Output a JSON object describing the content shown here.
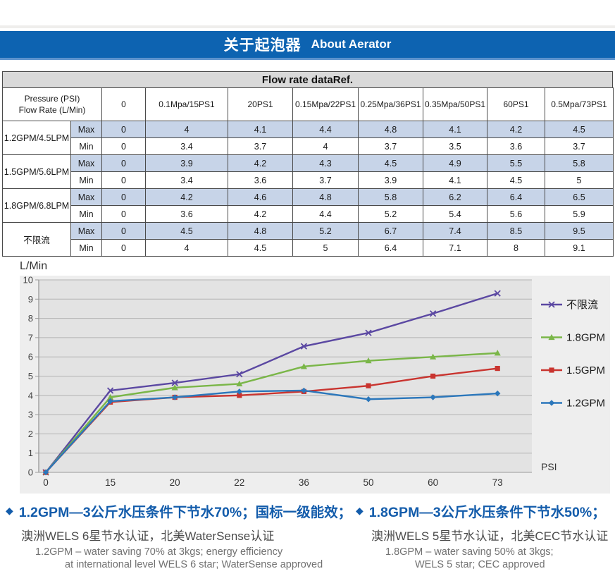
{
  "header": {
    "title_zh": "关于起泡器",
    "title_en": "About Aerator",
    "bar_color": "#0d63b1"
  },
  "table": {
    "title": "Flow rate dataRef.",
    "corner_line1": "Pressure (PSI)",
    "corner_line2": "Flow Rate (L/Min)",
    "max_label": "Max",
    "min_label": "Min",
    "max_row_bg": "#c7d4e8",
    "pressure_columns": [
      "0",
      "0.1Mpa/15PS1",
      "20PS1",
      "0.15Mpa/22PS1",
      "0.25Mpa/36PS1",
      "0.35Mpa/50PS1",
      "60PS1",
      "0.5Mpa/73PS1"
    ],
    "rows": [
      {
        "model": "1.2GPM/4.5LPM",
        "max": [
          "0",
          "4",
          "4.1",
          "4.4",
          "4.8",
          "4.1",
          "4.2",
          "4.5"
        ],
        "min": [
          "0",
          "3.4",
          "3.7",
          "4",
          "3.7",
          "3.5",
          "3.6",
          "3.7"
        ]
      },
      {
        "model": "1.5GPM/5.6LPM",
        "max": [
          "0",
          "3.9",
          "4.2",
          "4.3",
          "4.5",
          "4.9",
          "5.5",
          "5.8"
        ],
        "min": [
          "0",
          "3.4",
          "3.6",
          "3.7",
          "3.9",
          "4.1",
          "4.5",
          "5"
        ]
      },
      {
        "model": "1.8GPM/6.8LPM",
        "max": [
          "0",
          "4.2",
          "4.6",
          "4.8",
          "5.8",
          "6.2",
          "6.4",
          "6.5"
        ],
        "min": [
          "0",
          "3.6",
          "4.2",
          "4.4",
          "5.2",
          "5.4",
          "5.6",
          "5.9"
        ]
      },
      {
        "model": "不限流",
        "max": [
          "0",
          "4.5",
          "4.8",
          "5.2",
          "6.7",
          "7.4",
          "8.5",
          "9.5"
        ],
        "min": [
          "0",
          "4",
          "4.5",
          "5",
          "6.4",
          "7.1",
          "8",
          "9.1"
        ]
      }
    ]
  },
  "chart_data": {
    "type": "line",
    "title": "",
    "xlabel": "PSI",
    "ylabel": "L/Min",
    "x": [
      "0",
      "15",
      "20",
      "22",
      "36",
      "50",
      "60",
      "73"
    ],
    "ylim": [
      0,
      10
    ],
    "ytick_step": 1,
    "grid": true,
    "legend_position": "right",
    "plot_bg": "#e3e3e3",
    "series": [
      {
        "name": "不限流",
        "color": "#5b48a2",
        "marker": "x",
        "values": [
          0,
          4.25,
          4.65,
          5.1,
          6.55,
          7.25,
          8.25,
          9.3
        ]
      },
      {
        "name": "1.8GPM",
        "color": "#7ab648",
        "marker": "triangle",
        "values": [
          0,
          3.9,
          4.4,
          4.6,
          5.5,
          5.8,
          6.0,
          6.2
        ]
      },
      {
        "name": "1.5GPM",
        "color": "#c9342f",
        "marker": "square",
        "values": [
          0,
          3.65,
          3.9,
          4.0,
          4.2,
          4.5,
          5.0,
          5.4
        ]
      },
      {
        "name": "1.2GPM",
        "color": "#2b77bb",
        "marker": "diamond",
        "values": [
          0,
          3.7,
          3.9,
          4.2,
          4.25,
          3.8,
          3.9,
          4.1
        ]
      }
    ]
  },
  "notes": {
    "bullet": "◆",
    "left": {
      "headline": "1.2GPM—3公斤水压条件下节水70%；国标一级能效；",
      "line2": "澳洲WELS 6星节水认证，北美WaterSense认证",
      "line3": "1.2GPM – water saving 70% at 3kgs; energy efficiency",
      "line4": "at international level WELS 6 star; WaterSense approved"
    },
    "right": {
      "headline": "1.8GPM—3公斤水压条件下节水50%；",
      "line2": "澳洲WELS 5星节水认证，北美CEC节水认证",
      "line3": "1.8GPM – water saving 50% at 3kgs;",
      "line4": "WELS 5 star; CEC approved"
    }
  }
}
